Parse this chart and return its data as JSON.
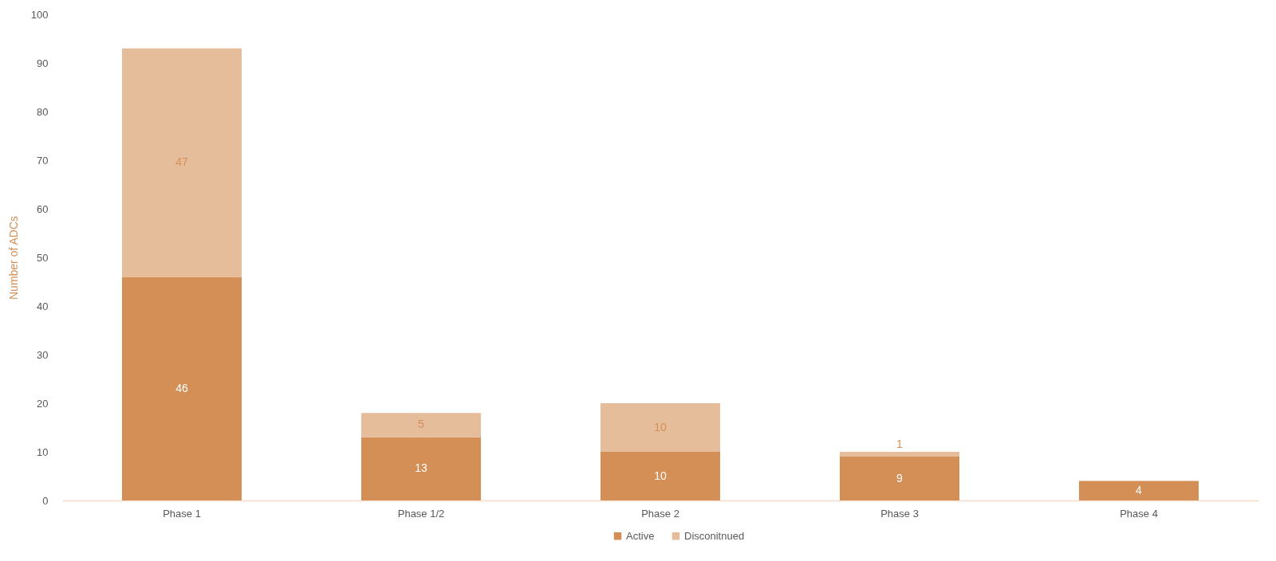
{
  "chart_data": {
    "type": "bar",
    "stacked": true,
    "ylabel": "Number of ADCs",
    "categories": [
      "Phase 1",
      "Phase 1/2",
      "Phase 2",
      "Phase 3",
      "Phase 4"
    ],
    "series": [
      {
        "name": "Active",
        "color": "#d48f56",
        "values": [
          46,
          13,
          10,
          9,
          4
        ]
      },
      {
        "name": "Disconitnued",
        "color": "#e6bd9b",
        "values": [
          47,
          5,
          10,
          1,
          null
        ]
      }
    ],
    "ylim": [
      0,
      100
    ],
    "yticks": [
      0,
      10,
      20,
      30,
      40,
      50,
      60,
      70,
      80,
      90,
      100
    ],
    "grid": false,
    "legend": "bottom",
    "data_labels": true
  }
}
